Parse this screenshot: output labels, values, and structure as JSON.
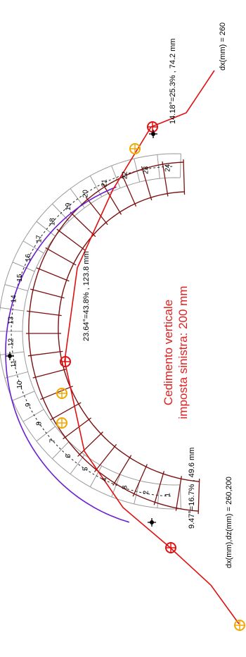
{
  "title": {
    "line1": "Cedimento verticale",
    "line2": "imposta sinistra: 200 mm"
  },
  "annotations": {
    "bottom_hinge": "9.47°=16.7% , 49.6 mm",
    "bottom_disp": "dx(mm),dz(mm) = 260,200",
    "middle_hinge": "23.64°=43.8% , 123.8 mm",
    "top_hinge": "14.18°=25.3% , 74.2 mm",
    "top_disp": "dx(mm) = 260"
  },
  "voussoir_numbers": [
    "1",
    "2",
    "3",
    "4",
    "5",
    "6",
    "7",
    "8",
    "9",
    "10",
    "11",
    "12",
    "13",
    "14",
    "15",
    "16",
    "17",
    "18",
    "19",
    "20",
    "21",
    "22",
    "23",
    "24"
  ],
  "colors": {
    "arch_deformed": "#7a1010",
    "arch_original": "#9a9a9a",
    "thrust_line": "#e01010",
    "pressure_curve": "#6a1fd0",
    "hinge_yellow": "#f0a800",
    "hinge_red": "#e01010",
    "title_red": "#e02020",
    "dashed_line": "#222222"
  }
}
